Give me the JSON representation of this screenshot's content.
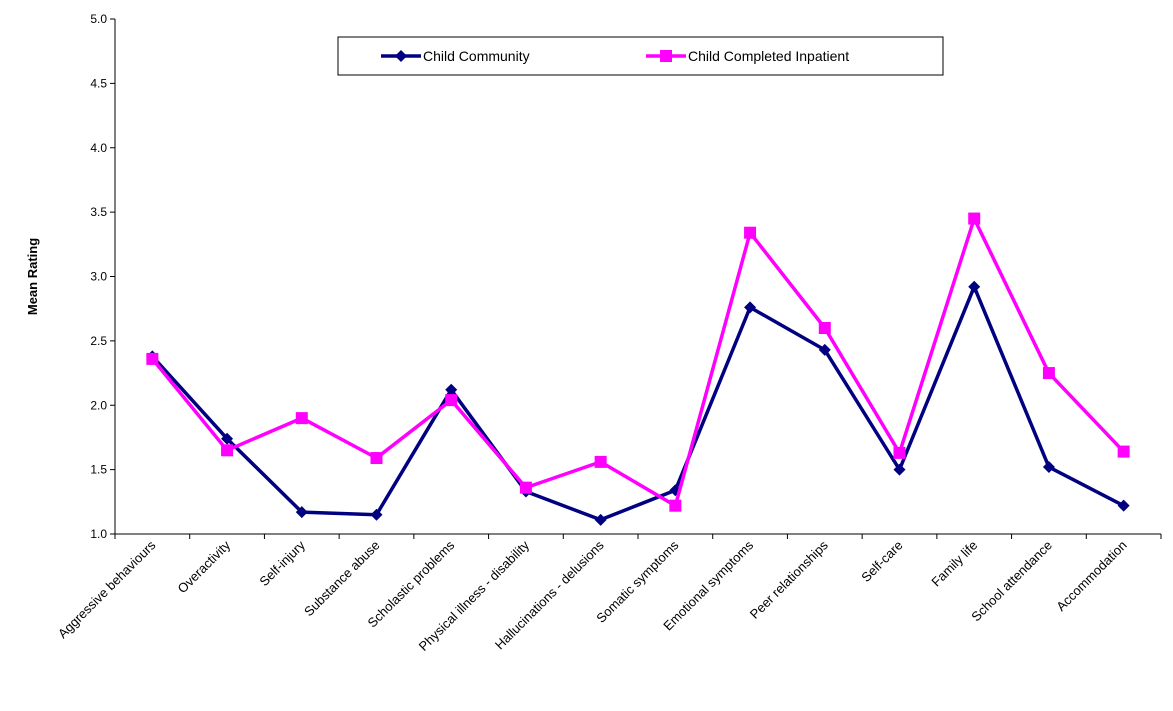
{
  "chart_data": {
    "type": "line",
    "title": "",
    "xlabel": "",
    "ylabel": "Mean Rating",
    "ylim": [
      1.0,
      5.0
    ],
    "yticks": [
      "1.0",
      "1.5",
      "2.0",
      "2.5",
      "3.0",
      "3.5",
      "4.0",
      "4.5",
      "5.0"
    ],
    "grid": false,
    "legend_position": "top-center",
    "categories": [
      "Aggressive behaviours",
      "Overactivity",
      "Self-injury",
      "Substance abuse",
      "Scholastic problems",
      "Physical illness - disability",
      "Hallucinations - delusions",
      "Somatic symptoms",
      "Emotional symptoms",
      "Peer relationships",
      "Self-care",
      "Family life",
      "School attendance",
      "Accommodation"
    ],
    "series": [
      {
        "name": "Child Community",
        "color": "#000080",
        "marker": "diamond",
        "values": [
          2.38,
          1.74,
          1.17,
          1.15,
          2.12,
          1.33,
          1.11,
          1.34,
          2.76,
          2.43,
          1.5,
          2.92,
          1.52,
          1.22
        ]
      },
      {
        "name": "Child Completed Inpatient",
        "color": "#FF00FF",
        "marker": "square",
        "values": [
          2.36,
          1.65,
          1.9,
          1.59,
          2.04,
          1.36,
          1.56,
          1.22,
          3.34,
          2.6,
          1.63,
          3.45,
          2.25,
          1.64
        ]
      }
    ]
  }
}
